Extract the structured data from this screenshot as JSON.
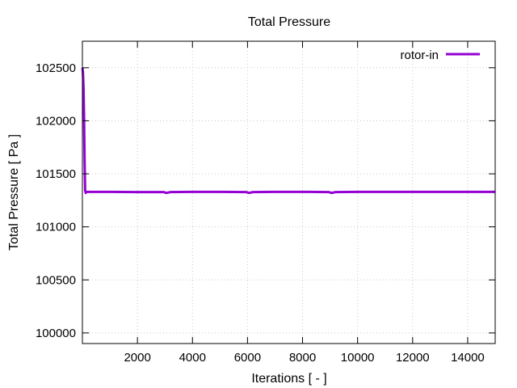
{
  "chart_data": {
    "type": "line",
    "title": "Total Pressure",
    "xlabel": "Iterations [ - ]",
    "ylabel": "Total Pressure [ Pa ]",
    "xlim": [
      0,
      15000
    ],
    "ylim": [
      99900,
      102750
    ],
    "xticks": [
      2000,
      4000,
      6000,
      8000,
      10000,
      12000,
      14000
    ],
    "yticks": [
      100000,
      100500,
      101000,
      101500,
      102000,
      102500
    ],
    "grid": true,
    "legend_position": "top-right",
    "series": [
      {
        "name": "rotor-in",
        "color": "#9400d3",
        "x": [
          1,
          20,
          40,
          60,
          80,
          100,
          120,
          150,
          200,
          500,
          1000,
          2000,
          2950,
          3050,
          3200,
          4000,
          5000,
          5950,
          6050,
          6200,
          7000,
          8000,
          8950,
          9050,
          9200,
          10000,
          11000,
          12000,
          13000,
          14000,
          15000
        ],
        "y": [
          102500,
          102460,
          102320,
          102050,
          101620,
          101340,
          101320,
          101330,
          101330,
          101330,
          101330,
          101328,
          101328,
          101320,
          101328,
          101330,
          101330,
          101328,
          101320,
          101328,
          101330,
          101330,
          101328,
          101320,
          101328,
          101330,
          101330,
          101330,
          101330,
          101330,
          101330
        ]
      }
    ]
  }
}
